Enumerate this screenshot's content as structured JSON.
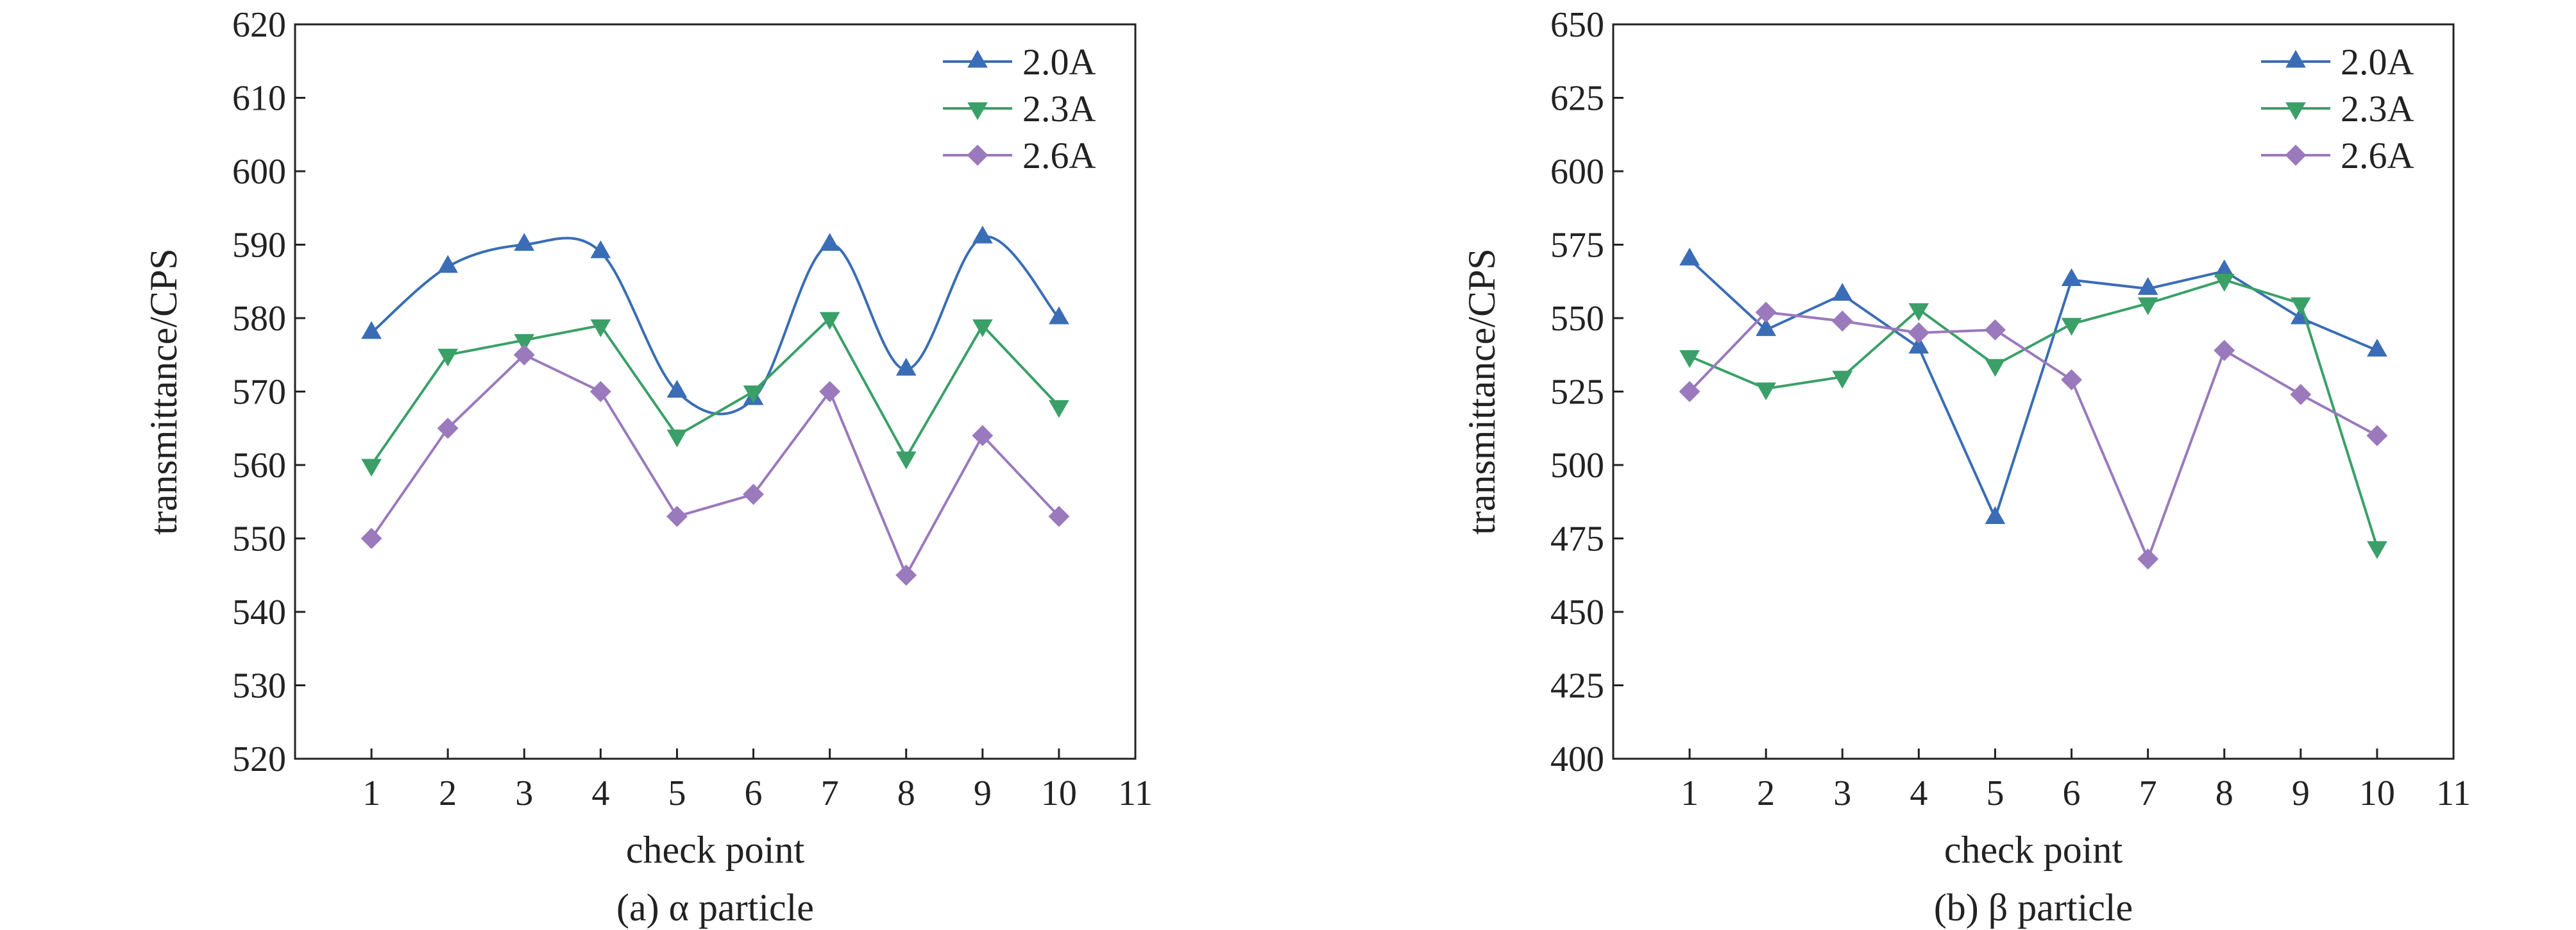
{
  "figure": {
    "captions": [
      "(a) α particle",
      "(b) β particle"
    ]
  },
  "colors": {
    "series_2.0A": "#3a6db5",
    "series_2.3A": "#3aa068",
    "series_2.6A": "#9a79bd",
    "axis": "#222222"
  },
  "chart_data": [
    {
      "type": "line",
      "caption": "(a) α particle",
      "xlabel": "check point",
      "ylabel": "transmittance/CPS",
      "xlim": [
        0,
        11
      ],
      "ylim": [
        520,
        620
      ],
      "x_ticks": [
        1,
        2,
        3,
        4,
        5,
        6,
        7,
        8,
        9,
        10,
        11
      ],
      "y_ticks": [
        520,
        530,
        540,
        550,
        560,
        570,
        580,
        590,
        600,
        610,
        620
      ],
      "x": [
        1,
        2,
        3,
        4,
        5,
        6,
        7,
        8,
        9,
        10
      ],
      "grid": false,
      "legend_position": "top-right",
      "series": [
        {
          "name": "2.0A",
          "marker": "triangle-up",
          "color": "#3a6db5",
          "smooth": true,
          "values": [
            578,
            587,
            590,
            589,
            570,
            569,
            590,
            573,
            591,
            580
          ]
        },
        {
          "name": "2.3A",
          "marker": "triangle-down",
          "color": "#3aa068",
          "smooth": false,
          "values": [
            560,
            575,
            577,
            579,
            564,
            570,
            580,
            561,
            579,
            568
          ]
        },
        {
          "name": "2.6A",
          "marker": "diamond",
          "color": "#9a79bd",
          "smooth": false,
          "values": [
            550,
            565,
            575,
            570,
            553,
            556,
            570,
            545,
            564,
            553
          ]
        }
      ]
    },
    {
      "type": "line",
      "caption": "(b) β particle",
      "xlabel": "check point",
      "ylabel": "transmittance/CPS",
      "xlim": [
        0,
        11
      ],
      "ylim": [
        400,
        650
      ],
      "x_ticks": [
        1,
        2,
        3,
        4,
        5,
        6,
        7,
        8,
        9,
        10,
        11
      ],
      "y_ticks": [
        400,
        425,
        450,
        475,
        500,
        525,
        550,
        575,
        600,
        625,
        650
      ],
      "x": [
        1,
        2,
        3,
        4,
        5,
        6,
        7,
        8,
        9,
        10
      ],
      "grid": false,
      "legend_position": "top-right",
      "series": [
        {
          "name": "2.0A",
          "marker": "triangle-up",
          "color": "#3a6db5",
          "smooth": false,
          "values": [
            570,
            546,
            558,
            540,
            482,
            563,
            560,
            566,
            550,
            539
          ]
        },
        {
          "name": "2.3A",
          "marker": "triangle-down",
          "color": "#3aa068",
          "smooth": false,
          "values": [
            537,
            526,
            530,
            553,
            534,
            548,
            555,
            563,
            555,
            472
          ]
        },
        {
          "name": "2.6A",
          "marker": "diamond",
          "color": "#9a79bd",
          "smooth": false,
          "values": [
            525,
            552,
            549,
            545,
            546,
            529,
            468,
            539,
            524,
            510
          ]
        }
      ]
    }
  ]
}
